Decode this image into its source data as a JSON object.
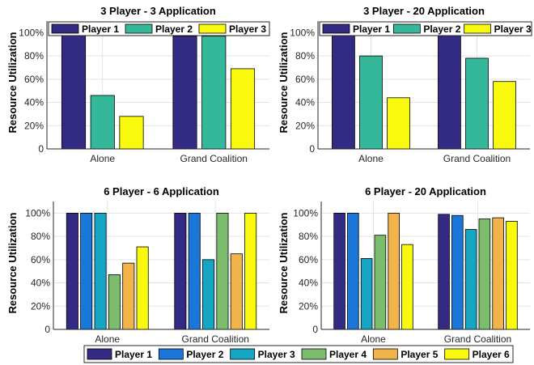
{
  "chart_data": [
    {
      "type": "bar",
      "title": "3 Player - 3 Application",
      "ylabel": "Resource Utilization",
      "categories": [
        "Alone",
        "Grand Coalition"
      ],
      "yticks": [
        "0",
        "20%",
        "40%",
        "60%",
        "80%",
        "100%"
      ],
      "ylim": [
        0,
        110
      ],
      "grid": true,
      "legend_position": "top",
      "series": [
        {
          "name": "Player 1",
          "color": "#332a84",
          "values": [
            100,
            97
          ]
        },
        {
          "name": "Player 2",
          "color": "#35b899",
          "values": [
            46,
            97
          ]
        },
        {
          "name": "Player 3",
          "color": "#f9f90e",
          "values": [
            28,
            69
          ]
        }
      ]
    },
    {
      "type": "bar",
      "title": "3 Player - 20 Application",
      "ylabel": "Resource Utilization",
      "categories": [
        "Alone",
        "Grand Coalition"
      ],
      "yticks": [
        "0",
        "20%",
        "40%",
        "60%",
        "80%",
        "100%"
      ],
      "ylim": [
        0,
        110
      ],
      "grid": true,
      "legend_position": "top",
      "series": [
        {
          "name": "Player 1",
          "color": "#332a84",
          "values": [
            100,
            100
          ]
        },
        {
          "name": "Player 2",
          "color": "#35b899",
          "values": [
            80,
            78
          ]
        },
        {
          "name": "Player 3",
          "color": "#f9f90e",
          "values": [
            44,
            58
          ]
        }
      ]
    },
    {
      "type": "bar",
      "title": "6 Player - 6 Application",
      "ylabel": "Resource Utilization",
      "categories": [
        "Alone",
        "Grand Coalition"
      ],
      "yticks": [
        "0",
        "20%",
        "40%",
        "60%",
        "80%",
        "100%"
      ],
      "ylim": [
        0,
        110
      ],
      "grid": true,
      "series": [
        {
          "name": "Player 1",
          "color": "#332a84",
          "values": [
            100,
            100
          ]
        },
        {
          "name": "Player 2",
          "color": "#1a76d8",
          "values": [
            100,
            100
          ]
        },
        {
          "name": "Player 3",
          "color": "#14a6c3",
          "values": [
            100,
            60
          ]
        },
        {
          "name": "Player 4",
          "color": "#7bbd6d",
          "values": [
            47,
            100
          ]
        },
        {
          "name": "Player 5",
          "color": "#f0b44a",
          "values": [
            57,
            65
          ]
        },
        {
          "name": "Player 6",
          "color": "#f9f90e",
          "values": [
            71,
            100
          ]
        }
      ]
    },
    {
      "type": "bar",
      "title": "6 Player - 20 Application",
      "ylabel": "Resource Utilization",
      "categories": [
        "Alone",
        "Grand Coalition"
      ],
      "yticks": [
        "0",
        "20%",
        "40%",
        "60%",
        "80%",
        "100%"
      ],
      "ylim": [
        0,
        110
      ],
      "grid": true,
      "series": [
        {
          "name": "Player 1",
          "color": "#332a84",
          "values": [
            100,
            99
          ]
        },
        {
          "name": "Player 2",
          "color": "#1a76d8",
          "values": [
            100,
            98
          ]
        },
        {
          "name": "Player 3",
          "color": "#14a6c3",
          "values": [
            61,
            86
          ]
        },
        {
          "name": "Player 4",
          "color": "#7bbd6d",
          "values": [
            81,
            95
          ]
        },
        {
          "name": "Player 5",
          "color": "#f0b44a",
          "values": [
            100,
            96
          ]
        },
        {
          "name": "Player 6",
          "color": "#f9f90e",
          "values": [
            73,
            93
          ]
        }
      ]
    }
  ],
  "shared_legend": {
    "position": "bottom",
    "entries": [
      {
        "name": "Player 1",
        "color": "#332a84"
      },
      {
        "name": "Player 2",
        "color": "#1a76d8"
      },
      {
        "name": "Player 3",
        "color": "#14a6c3"
      },
      {
        "name": "Player 4",
        "color": "#7bbd6d"
      },
      {
        "name": "Player 5",
        "color": "#f0b44a"
      },
      {
        "name": "Player 6",
        "color": "#f9f90e"
      }
    ]
  }
}
